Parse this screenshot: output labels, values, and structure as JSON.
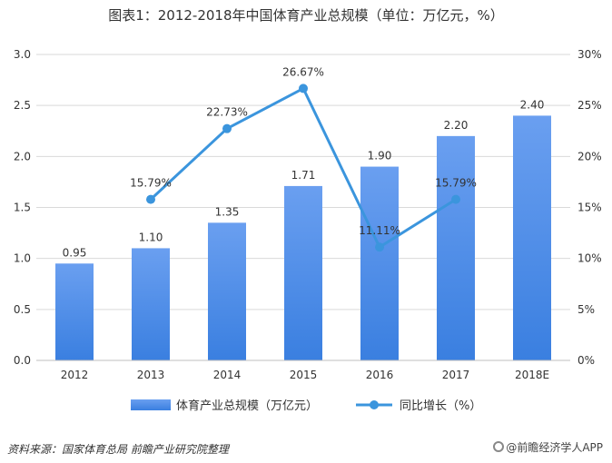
{
  "title": "图表1：2012-2018年中国体育产业总规模（单位：万亿元，%）",
  "source": "资料来源：国家体育总局 前瞻产业研究院整理",
  "brand": "@前瞻经济学人APP",
  "colors": {
    "bar": "#3a7fe0",
    "bar_top": "#6a9ff0",
    "line": "#3b95dd",
    "grid": "#d9d9d9"
  },
  "chart_data": {
    "type": "bar",
    "categories": [
      "2012",
      "2013",
      "2014",
      "2015",
      "2016",
      "2017",
      "2018E"
    ],
    "series": [
      {
        "name": "体育产业总规模（万亿元）",
        "type": "bar",
        "axis": "left",
        "values": [
          0.95,
          1.1,
          1.35,
          1.71,
          1.9,
          2.2,
          2.4
        ],
        "labels": [
          "0.95",
          "1.10",
          "1.35",
          "1.71",
          "1.90",
          "2.20",
          "2.40"
        ]
      },
      {
        "name": "同比增长（%）",
        "type": "line",
        "axis": "right",
        "values": [
          null,
          15.79,
          22.73,
          26.67,
          11.11,
          15.79,
          null
        ],
        "labels": [
          "",
          "15.79%",
          "22.73%",
          "26.67%",
          "11.11%",
          "15.79%",
          ""
        ]
      }
    ],
    "y_left": {
      "min": 0,
      "max": 3.0,
      "ticks": [
        "0.0",
        "0.5",
        "1.0",
        "1.5",
        "2.0",
        "2.5",
        "3.0"
      ]
    },
    "y_right": {
      "min": 0,
      "max": 30,
      "ticks": [
        "0%",
        "5%",
        "10%",
        "15%",
        "20%",
        "25%",
        "30%"
      ]
    },
    "grid": true,
    "legend_position": "bottom"
  }
}
